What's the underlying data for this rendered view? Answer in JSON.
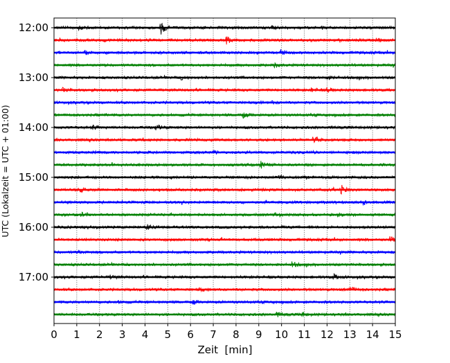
{
  "chart_data": {
    "type": "line",
    "subtype": "helicorder",
    "title": "",
    "xlabel": "Zeit  [min]",
    "ylabel": "UTC (Lokalzeit = UTC + 01:00)",
    "xlim": [
      0,
      15
    ],
    "x_ticks": [
      "0",
      "1",
      "2",
      "3",
      "4",
      "5",
      "6",
      "7",
      "8",
      "9",
      "10",
      "11",
      "12",
      "13",
      "14",
      "15"
    ],
    "y_tick_labels": [
      "12:00",
      "13:00",
      "14:00",
      "15:00",
      "16:00",
      "17:00"
    ],
    "grid": "vertical dotted at each minute",
    "minutes_per_line": 15,
    "line_colors": [
      "#000000",
      "#ff0000",
      "#0000ff",
      "#008000"
    ],
    "series": [
      {
        "start": "12:00",
        "events": [
          {
            "minute": 4.7,
            "amplitude": 1.0
          },
          {
            "minute": 1.1,
            "amplitude": 0.3
          },
          {
            "minute": 9.6,
            "amplitude": 0.3
          }
        ]
      },
      {
        "start": "12:15",
        "events": [
          {
            "minute": 7.6,
            "amplitude": 0.6
          },
          {
            "minute": 14.2,
            "amplitude": 0.3
          }
        ]
      },
      {
        "start": "12:30",
        "events": [
          {
            "minute": 1.4,
            "amplitude": 0.3
          },
          {
            "minute": 10.0,
            "amplitude": 0.35
          }
        ]
      },
      {
        "start": "12:45",
        "events": [
          {
            "minute": 9.7,
            "amplitude": 0.3
          }
        ]
      },
      {
        "start": "13:00",
        "events": [
          {
            "minute": 5.6,
            "amplitude": 0.25
          },
          {
            "minute": 12.0,
            "amplitude": 0.25
          }
        ]
      },
      {
        "start": "13:15",
        "events": [
          {
            "minute": 0.4,
            "amplitude": 0.3
          },
          {
            "minute": 11.3,
            "amplitude": 0.3
          },
          {
            "minute": 12.0,
            "amplitude": 0.3
          }
        ]
      },
      {
        "start": "13:30",
        "events": [
          {
            "minute": 9.6,
            "amplitude": 0.15
          }
        ]
      },
      {
        "start": "13:45",
        "events": [
          {
            "minute": 8.3,
            "amplitude": 0.4
          }
        ]
      },
      {
        "start": "14:00",
        "events": [
          {
            "minute": 1.7,
            "amplitude": 0.25
          },
          {
            "minute": 4.5,
            "amplitude": 0.4
          }
        ]
      },
      {
        "start": "14:15",
        "events": [
          {
            "minute": 11.4,
            "amplitude": 0.4
          }
        ]
      },
      {
        "start": "14:30",
        "events": [
          {
            "minute": 7.0,
            "amplitude": 0.15
          }
        ]
      },
      {
        "start": "14:45",
        "events": [
          {
            "minute": 9.1,
            "amplitude": 0.45
          }
        ]
      },
      {
        "start": "15:00",
        "events": [
          {
            "minute": 9.9,
            "amplitude": 0.3
          }
        ]
      },
      {
        "start": "15:15",
        "events": [
          {
            "minute": 12.6,
            "amplitude": 0.8
          },
          {
            "minute": 1.2,
            "amplitude": 0.2
          }
        ]
      },
      {
        "start": "15:30",
        "events": [
          {
            "minute": 13.6,
            "amplitude": 0.4
          }
        ]
      },
      {
        "start": "15:45",
        "events": [
          {
            "minute": 1.2,
            "amplitude": 0.25
          },
          {
            "minute": 12.5,
            "amplitude": 0.2
          }
        ]
      },
      {
        "start": "16:00",
        "events": [
          {
            "minute": 4.1,
            "amplitude": 0.45
          },
          {
            "minute": 1.5,
            "amplitude": 0.2
          }
        ]
      },
      {
        "start": "16:15",
        "events": [
          {
            "minute": 14.8,
            "amplitude": 0.4
          }
        ]
      },
      {
        "start": "16:30",
        "events": [
          {
            "minute": 1.0,
            "amplitude": 0.2
          }
        ]
      },
      {
        "start": "16:45",
        "events": [
          {
            "minute": 10.5,
            "amplitude": 0.35
          }
        ]
      },
      {
        "start": "17:00",
        "events": [
          {
            "minute": 12.3,
            "amplitude": 0.35
          },
          {
            "minute": 2.5,
            "amplitude": 0.2
          }
        ]
      },
      {
        "start": "17:15",
        "events": [
          {
            "minute": 13.0,
            "amplitude": 0.45
          },
          {
            "minute": 6.4,
            "amplitude": 0.2
          }
        ]
      },
      {
        "start": "17:30",
        "events": [
          {
            "minute": 6.1,
            "amplitude": 0.3
          },
          {
            "minute": 2.8,
            "amplitude": 0.15
          }
        ]
      },
      {
        "start": "17:45",
        "events": [
          {
            "minute": 9.8,
            "amplitude": 0.3
          },
          {
            "minute": 10.9,
            "amplitude": 0.35
          }
        ]
      }
    ]
  }
}
